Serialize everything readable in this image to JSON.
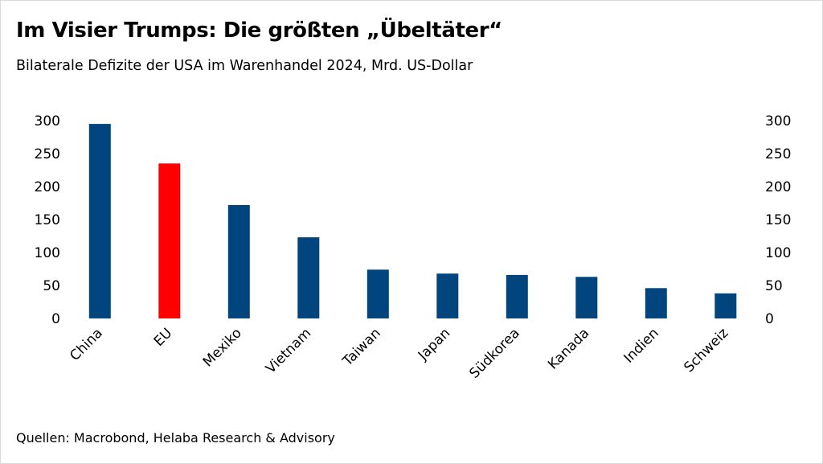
{
  "title": "Im Visier Trumps: Die größten „Übeltäter“",
  "subtitle": "Bilaterale Defizite der USA im Warenhandel 2024, Mrd. US-Dollar",
  "source": "Quellen: Macrobond, Helaba Research & Advisory",
  "chart_data": {
    "type": "bar",
    "categories": [
      "China",
      "EU",
      "Mexiko",
      "Vietnam",
      "Taiwan",
      "Japan",
      "Südkorea",
      "Kanada",
      "Indien",
      "Schweiz"
    ],
    "values": [
      295,
      235,
      172,
      123,
      74,
      68,
      66,
      63,
      46,
      38
    ],
    "colors": [
      "#00457d",
      "#ff0000",
      "#00457d",
      "#00457d",
      "#00457d",
      "#00457d",
      "#00457d",
      "#00457d",
      "#00457d",
      "#00457d"
    ],
    "ylim": [
      0,
      300
    ],
    "yticks": [
      0,
      50,
      100,
      150,
      200,
      250,
      300
    ],
    "grid": false,
    "axes": "left-and-right"
  }
}
